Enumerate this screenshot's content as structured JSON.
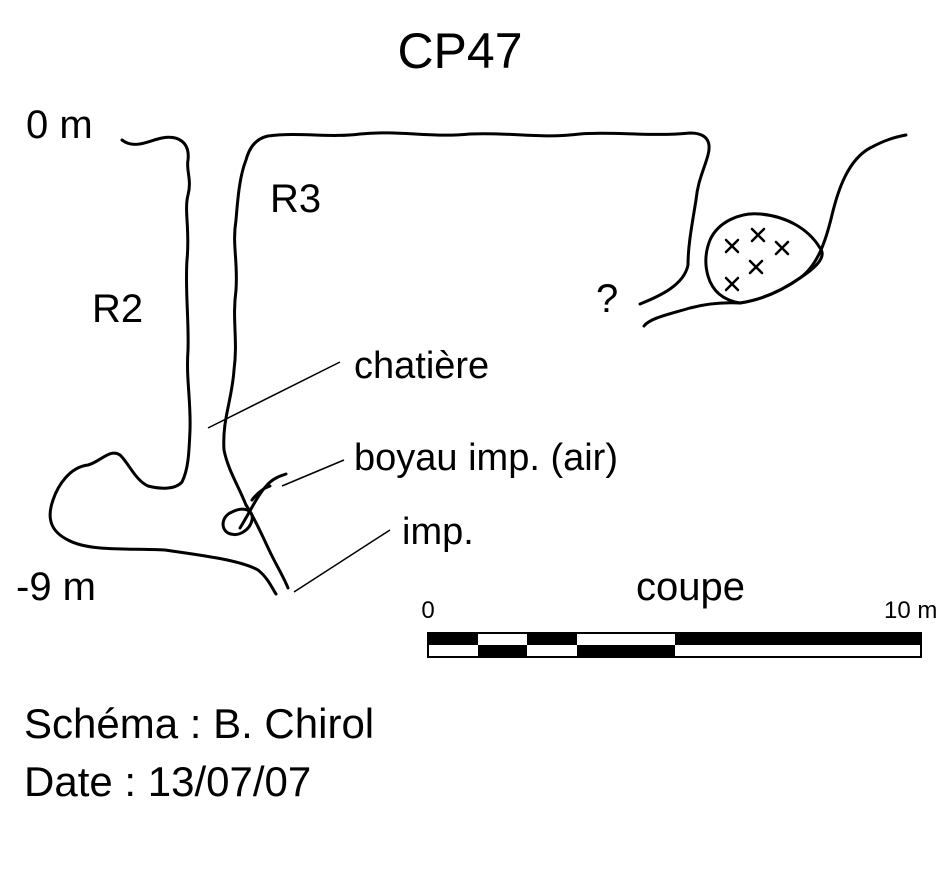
{
  "title": "CP47",
  "depth_labels": {
    "top": "0 m",
    "bottom": "-9 m"
  },
  "shaft_labels": {
    "r2": "R2",
    "r3": "R3"
  },
  "annotations": {
    "unknown": "?",
    "chatiere": "chatière",
    "boyau": "boyau imp. (air)",
    "imp": "imp."
  },
  "view_label": "coupe",
  "scale_bar": {
    "start_label": "0",
    "end_label": "10 m",
    "segments": 6
  },
  "credits": {
    "author": "Schéma : B. Chirol",
    "date": "Date : 13/07/07"
  }
}
